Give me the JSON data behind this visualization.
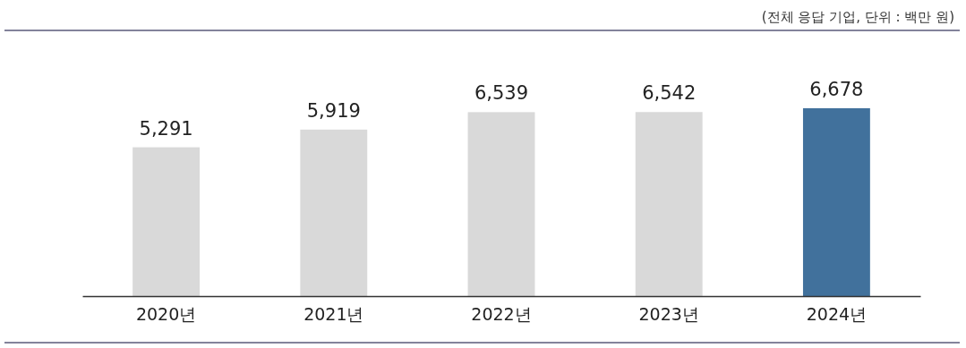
{
  "chart_data": {
    "type": "bar",
    "annotations": [
      "(전체 응답 기업, 단위 : 백만 원)"
    ],
    "categories": [
      "2020년",
      "2021년",
      "2022년",
      "2023년",
      "2024년"
    ],
    "values": [
      5291,
      5919,
      6539,
      6542,
      6678
    ],
    "colors": [
      "#d9d9d9",
      "#d9d9d9",
      "#d9d9d9",
      "#d9d9d9",
      "#41719c"
    ],
    "value_labels": [
      "5,291",
      "5,919",
      "6,539",
      "6,542",
      "6,678"
    ]
  }
}
